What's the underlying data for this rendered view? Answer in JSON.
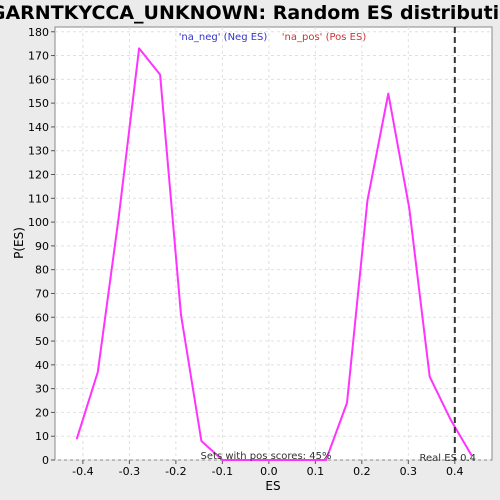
{
  "chart_data": {
    "type": "line",
    "title": "GGARNTKYCCA_UNKNOWN: Random ES distribution",
    "xlabel": "ES",
    "ylabel": "P(ES)",
    "xlim": [
      -0.46,
      0.48
    ],
    "ylim": [
      0,
      182
    ],
    "x_ticks": [
      -0.4,
      -0.3,
      -0.2,
      -0.1,
      0.0,
      0.1,
      0.2,
      0.3,
      0.4
    ],
    "x_tick_labels": [
      "-0.4",
      "-0.3",
      "-0.2",
      "-0.1",
      "0.0",
      "0.1",
      "0.2",
      "0.3",
      "0.4"
    ],
    "y_ticks": [
      0,
      10,
      20,
      30,
      40,
      50,
      60,
      70,
      80,
      90,
      100,
      110,
      120,
      130,
      140,
      150,
      160,
      170,
      180
    ],
    "grid": true,
    "legend": {
      "placement": "top-center",
      "entries": [
        {
          "label": "'na_neg' (Neg ES)",
          "color": "#3333cc"
        },
        {
          "label": "'na_pos' (Pos ES)",
          "color": "#cc3333"
        }
      ]
    },
    "series": [
      {
        "color": "#ff33ff",
        "x": [
          -0.413,
          -0.368,
          -0.323,
          -0.279,
          -0.234,
          -0.189,
          -0.145,
          -0.1,
          -0.056,
          -0.011,
          0.034,
          0.078,
          0.123,
          0.168,
          0.212,
          0.257,
          0.302,
          0.346,
          0.391,
          0.436
        ],
        "y": [
          9,
          37,
          102,
          173,
          162,
          61,
          8,
          0,
          0,
          0,
          0,
          0,
          0,
          24,
          109,
          154,
          106,
          35,
          17,
          2
        ]
      }
    ],
    "reference_line": {
      "x": 0.4,
      "label": "Real ES 0.4",
      "style": "dashed",
      "color": "#333333"
    },
    "annotation": "Sets with pos scores: 45%"
  },
  "colors": {
    "background": "#ebebeb",
    "plot_background": "#ffffff",
    "grid": "#e0e0e0",
    "line": "#ff33ff"
  }
}
